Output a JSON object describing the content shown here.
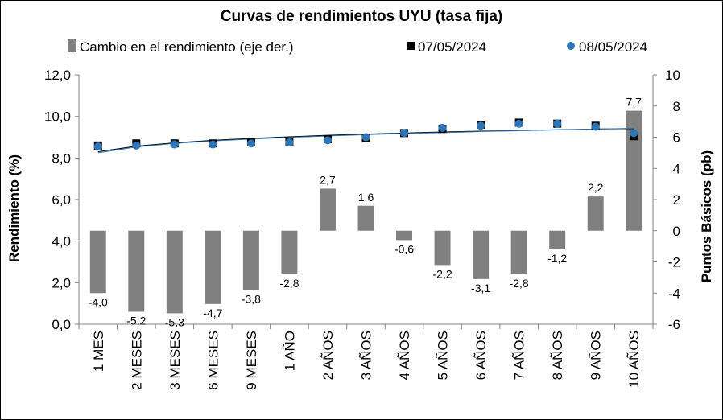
{
  "chart_data": {
    "type": "bar",
    "title": "Curvas de rendimientos UYU (tasa fija)",
    "categories": [
      "1 MES",
      "2 MESES",
      "3 MESES",
      "6 MESES",
      "9 MESES",
      "1 AÑO",
      "2 AÑOS",
      "3 AÑOS",
      "4 AÑOS",
      "5 AÑOS",
      "6 AÑOS",
      "7 AÑOS",
      "8 AÑOS",
      "9 AÑOS",
      "10 AÑOS"
    ],
    "ylabel": "Rendimiento (%)",
    "y2label": "Puntos Básicos (pb)",
    "ylim": [
      0,
      12
    ],
    "y2lim": [
      -6,
      10
    ],
    "yticks": [
      "0,0",
      "2,0",
      "4,0",
      "6,0",
      "8,0",
      "10,0",
      "12,0"
    ],
    "y2ticks": [
      "-6",
      "-4",
      "-2",
      "0",
      "2",
      "4",
      "6",
      "8",
      "10"
    ],
    "legend_position": "top",
    "grid": false,
    "series": [
      {
        "name": "Cambio en el rendimiento (eje der.)",
        "kind": "bar",
        "axis": "right",
        "color": "#808080",
        "values": [
          -4.0,
          -5.2,
          -5.3,
          -4.7,
          -3.8,
          -2.8,
          2.7,
          1.6,
          -0.6,
          -2.2,
          -3.1,
          -2.8,
          -1.2,
          2.2,
          7.7
        ],
        "labels": [
          "-4,0",
          "-5,2",
          "-5,3",
          "-4,7",
          "-3,8",
          "-2,8",
          "2,7",
          "1,6",
          "-0,6",
          "-2,2",
          "-3,1",
          "-2,8",
          "-1,2",
          "2,2",
          "7,7"
        ]
      },
      {
        "name": "07/05/2024",
        "kind": "marker",
        "marker": "square",
        "axis": "left",
        "color": "#000000",
        "values": [
          8.6,
          8.7,
          8.7,
          8.7,
          8.75,
          8.8,
          8.9,
          8.95,
          9.2,
          9.4,
          9.6,
          9.7,
          9.65,
          9.55,
          9.05
        ]
      },
      {
        "name": "08/05/2024",
        "kind": "marker",
        "marker": "circle",
        "axis": "left",
        "color": "#2E75B6",
        "values": [
          8.55,
          8.6,
          8.65,
          8.65,
          8.7,
          8.75,
          8.85,
          9.0,
          9.2,
          9.45,
          9.55,
          9.65,
          9.65,
          9.5,
          9.2
        ]
      }
    ],
    "trendlines": [
      {
        "series": "07/05/2024",
        "color": "#000000",
        "values": [
          8.3,
          8.57,
          8.73,
          8.85,
          8.94,
          9.02,
          9.09,
          9.15,
          9.2,
          9.25,
          9.29,
          9.32,
          9.36,
          9.39,
          9.41
        ]
      },
      {
        "series": "08/05/2024",
        "color": "#2E75B6",
        "values": [
          8.25,
          8.53,
          8.7,
          8.82,
          8.91,
          8.99,
          9.06,
          9.12,
          9.18,
          9.22,
          9.27,
          9.31,
          9.35,
          9.39,
          9.43
        ]
      }
    ]
  }
}
